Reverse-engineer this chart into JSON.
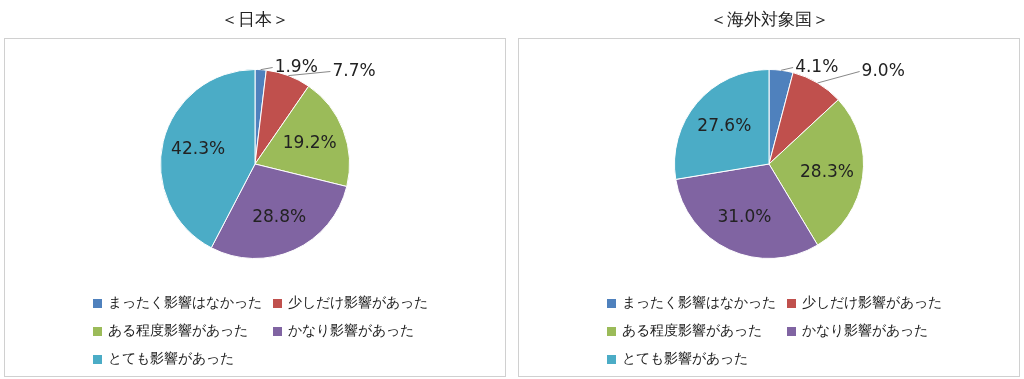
{
  "chart_data": [
    {
      "type": "pie",
      "title": "＜日本＞",
      "categories": [
        "まったく影響はなかった",
        "少しだけ影響があった",
        "ある程度影響があった",
        "かなり影響があった",
        "とても影響があった"
      ],
      "values": [
        1.9,
        7.7,
        19.2,
        28.8,
        42.3
      ],
      "value_labels": [
        "1.9%",
        "7.7%",
        "19.2%",
        "28.8%",
        "42.3%"
      ],
      "colors": [
        "#4f81bd",
        "#c0504d",
        "#9bbb59",
        "#8064a2",
        "#4bacc6"
      ],
      "legend": "bottom"
    },
    {
      "type": "pie",
      "title": "＜海外対象国＞",
      "categories": [
        "まったく影響はなかった",
        "少しだけ影響があった",
        "ある程度影響があった",
        "かなり影響があった",
        "とても影響があった"
      ],
      "values": [
        4.1,
        9.0,
        28.3,
        31.0,
        27.6
      ],
      "value_labels": [
        "4.1%",
        "9.0%",
        "28.3%",
        "31.0%",
        "27.6%"
      ],
      "colors": [
        "#4f81bd",
        "#c0504d",
        "#9bbb59",
        "#8064a2",
        "#4bacc6"
      ],
      "legend": "bottom"
    }
  ]
}
